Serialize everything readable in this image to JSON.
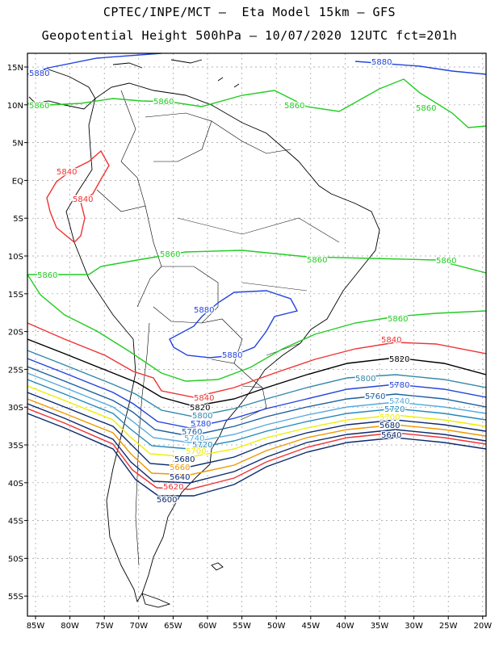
{
  "header": {
    "line1": "CPTEC/INPE/MCT –  Eta Model 15km – GFS",
    "line2": "Geopotential Height 500hPa – 10/07/2020 12UTC fct=201h"
  },
  "map": {
    "lat_labels": [
      "15N",
      "10N",
      "5N",
      "EQ",
      "5S",
      "10S",
      "15S",
      "20S",
      "25S",
      "30S",
      "35S",
      "40S",
      "45S",
      "50S",
      "55S"
    ],
    "lon_labels": [
      "85W",
      "80W",
      "75W",
      "70W",
      "65W",
      "60W",
      "55W",
      "50W",
      "45W",
      "40W",
      "35W",
      "30W",
      "25W",
      "20W"
    ],
    "colors": {
      "c5880": "#2244dd",
      "c5860": "#22cc22",
      "c5840": "#ee3333",
      "c5820": "#000000",
      "c5800": "#3388aa",
      "c5780": "#2244dd",
      "c5760": "#1a5fa0",
      "c5740": "#55aadd",
      "c5720": "#2288bb",
      "c5700": "#eeee00",
      "c5680": "#0b2a6e",
      "c5660": "#ee9900",
      "c5640": "#0b2a6e",
      "c5620": "#ee3333",
      "c5600": "#0b2a6e"
    },
    "contour_labels": {
      "l5880_n1": "5880",
      "l5880_n2": "5880",
      "l5860_n1": "5860",
      "l5860_n2": "5860",
      "l5860_n3": "5860",
      "l5860_n4": "5860",
      "l5840_e1": "5840",
      "l5840_e2": "5840",
      "l5860_s1": "5860",
      "l5860_s2": "5860",
      "l5860_s3": "5860",
      "l5880_s1": "5880",
      "l5880_s2": "5880",
      "l5860_s4": "5860",
      "l5860_s5": "5860",
      "l5840_s1": "5840",
      "l5840_s2": "5840",
      "l5820_a": "5820",
      "l5820_b": "5820",
      "l5800_a": "5800",
      "l5800_b": "5800",
      "l5780_a": "5780",
      "l5780_b": "5780",
      "l5760_a": "5760",
      "l5760_b": "5760",
      "l5740_a": "5740",
      "l5740_b": "5740",
      "l5720_a": "5720",
      "l5720_b": "5720",
      "l5700_a": "5700",
      "l5700_b": "5700",
      "l5680_a": "5680",
      "l5680_b": "5680",
      "l5660_a": "5660",
      "l5640_a": "5640",
      "l5640_b": "5640",
      "l5620_a": "5620",
      "l5600_a": "5600"
    }
  }
}
